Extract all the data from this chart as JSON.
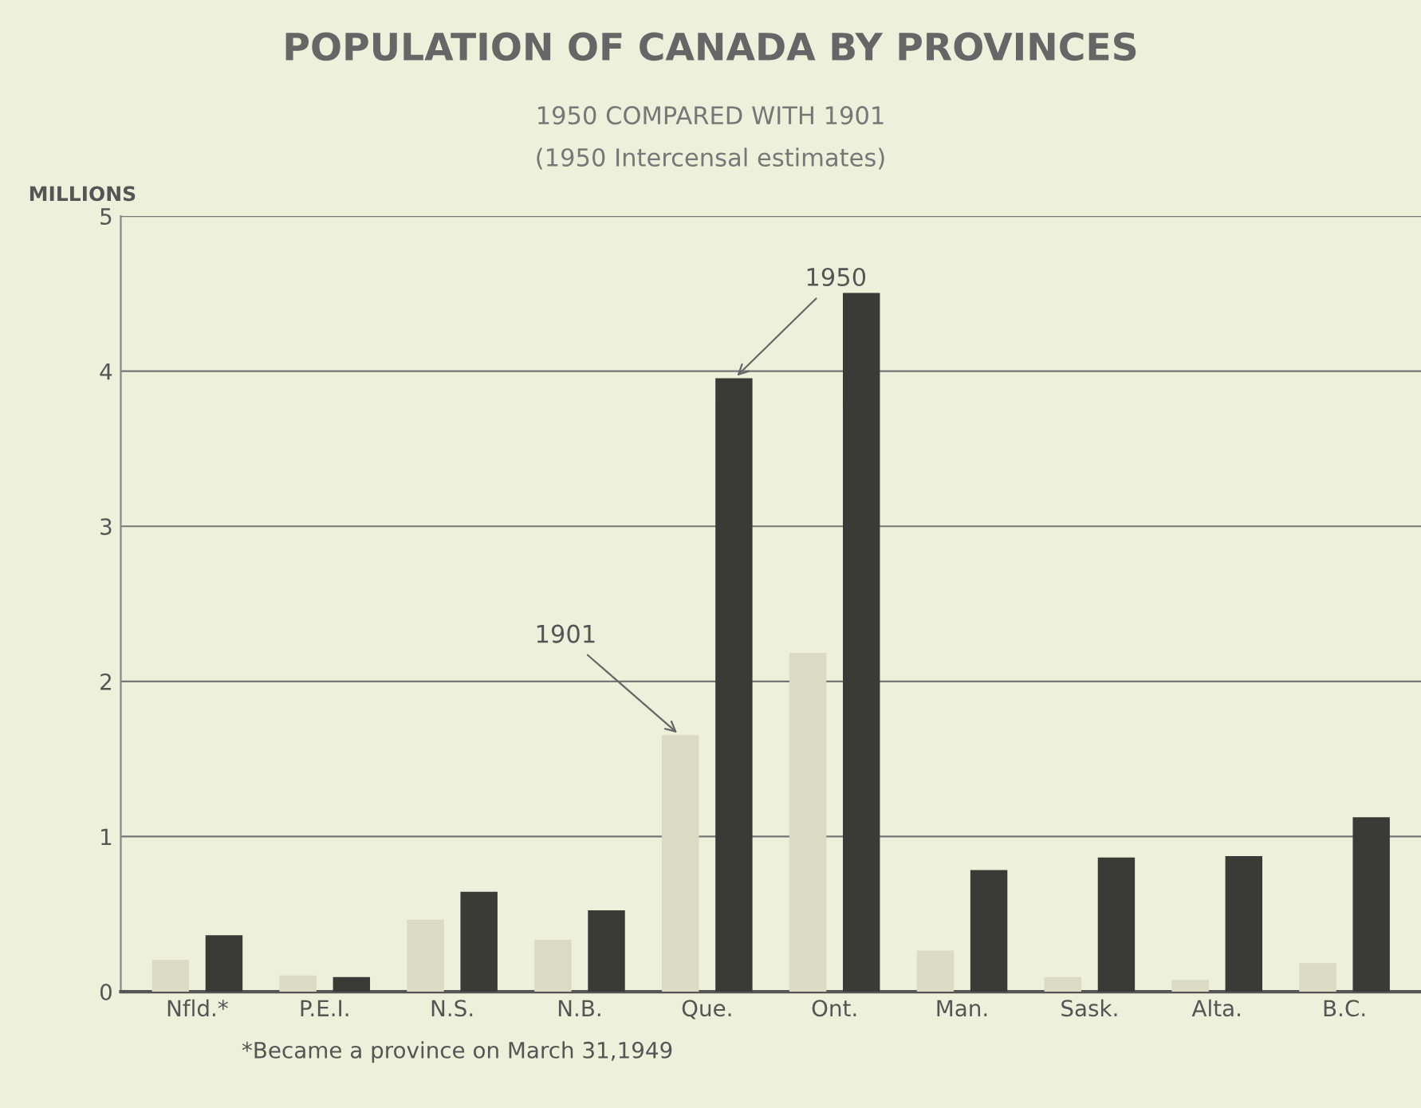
{
  "chart_data": {
    "type": "bar",
    "title": "POPULATION OF CANADA BY PROVINCES",
    "subtitle": "1950 COMPARED WITH 1901\n(1950 Intercensal estimates)",
    "ylabel": "MILLIONS",
    "categories": [
      "Nfld.*",
      "P.E.I.",
      "N.S.",
      "N.B.",
      "Que.",
      "Ont.",
      "Man.",
      "Sask.",
      "Alta.",
      "B.C."
    ],
    "series": [
      {
        "name": "1901",
        "color": "#d9dbc2",
        "values": [
          0.2,
          0.1,
          0.46,
          0.33,
          1.65,
          2.18,
          0.26,
          0.09,
          0.07,
          0.18
        ]
      },
      {
        "name": "1950",
        "color": "#3a3b36",
        "values": [
          0.36,
          0.09,
          0.64,
          0.52,
          3.95,
          4.5,
          0.78,
          0.86,
          0.87,
          1.12
        ]
      }
    ],
    "ylim": [
      0,
      5
    ],
    "yticks": [
      0,
      1,
      2,
      3,
      4,
      5
    ],
    "grid": "y",
    "legend": false,
    "annotations": [
      "*Became a province on March 31,1949"
    ]
  }
}
